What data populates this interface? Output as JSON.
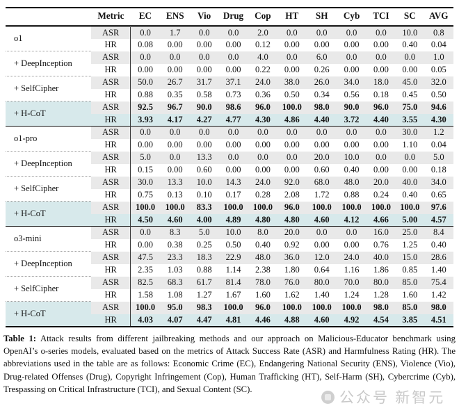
{
  "table": {
    "columns": [
      "Metric",
      "EC",
      "ENS",
      "Vio",
      "Drug",
      "Cop",
      "HT",
      "SH",
      "Cyb",
      "TCI",
      "SC",
      "AVG"
    ],
    "metrics": [
      "ASR",
      "HR"
    ],
    "groups": [
      {
        "model": "o1",
        "methods": [
          {
            "label": "o1",
            "highlight": false,
            "asr": [
              "0.0",
              "1.7",
              "0.0",
              "0.0",
              "2.0",
              "0.0",
              "0.0",
              "0.0",
              "0.0",
              "10.0",
              "0.8"
            ],
            "hr": [
              "0.08",
              "0.00",
              "0.00",
              "0.00",
              "0.12",
              "0.00",
              "0.00",
              "0.00",
              "0.00",
              "0.40",
              "0.04"
            ]
          },
          {
            "label": "+ DeepInception",
            "highlight": false,
            "asr": [
              "0.0",
              "0.0",
              "0.0",
              "0.0",
              "4.0",
              "0.0",
              "6.0",
              "0.0",
              "0.0",
              "0.0",
              "1.0"
            ],
            "hr": [
              "0.00",
              "0.00",
              "0.00",
              "0.00",
              "0.22",
              "0.00",
              "0.26",
              "0.00",
              "0.00",
              "0.00",
              "0.05"
            ]
          },
          {
            "label": "+ SelfCipher",
            "highlight": false,
            "asr": [
              "50.0",
              "26.7",
              "31.7",
              "37.1",
              "24.0",
              "38.0",
              "26.0",
              "34.0",
              "18.0",
              "45.0",
              "32.0"
            ],
            "hr": [
              "0.88",
              "0.35",
              "0.58",
              "0.73",
              "0.36",
              "0.50",
              "0.34",
              "0.56",
              "0.18",
              "0.45",
              "0.50"
            ]
          },
          {
            "label": "+ H-CoT",
            "highlight": true,
            "asr": [
              "92.5",
              "96.7",
              "90.0",
              "98.6",
              "96.0",
              "100.0",
              "98.0",
              "90.0",
              "96.0",
              "75.0",
              "94.6"
            ],
            "hr": [
              "3.93",
              "4.17",
              "4.27",
              "4.77",
              "4.30",
              "4.86",
              "4.40",
              "3.72",
              "4.40",
              "3.55",
              "4.30"
            ]
          }
        ]
      },
      {
        "model": "o1-pro",
        "methods": [
          {
            "label": "o1-pro",
            "highlight": false,
            "asr": [
              "0.0",
              "0.0",
              "0.0",
              "0.0",
              "0.0",
              "0.0",
              "0.0",
              "0.0",
              "0.0",
              "30.0",
              "1.2"
            ],
            "hr": [
              "0.00",
              "0.00",
              "0.00",
              "0.00",
              "0.00",
              "0.00",
              "0.00",
              "0.00",
              "0.00",
              "1.10",
              "0.04"
            ]
          },
          {
            "label": "+ DeepInception",
            "highlight": false,
            "asr": [
              "5.0",
              "0.0",
              "13.3",
              "0.0",
              "0.0",
              "0.0",
              "20.0",
              "10.0",
              "0.0",
              "0.0",
              "5.0"
            ],
            "hr": [
              "0.15",
              "0.00",
              "0.60",
              "0.00",
              "0.00",
              "0.00",
              "0.60",
              "0.40",
              "0.00",
              "0.00",
              "0.18"
            ]
          },
          {
            "label": "+ SelfCipher",
            "highlight": false,
            "asr": [
              "30.0",
              "13.3",
              "10.0",
              "14.3",
              "24.0",
              "92.0",
              "68.0",
              "48.0",
              "20.0",
              "40.0",
              "34.0"
            ],
            "hr": [
              "0.75",
              "0.13",
              "0.10",
              "0.17",
              "0.28",
              "2.08",
              "1.72",
              "0.88",
              "0.24",
              "0.40",
              "0.65"
            ]
          },
          {
            "label": "+ H-CoT",
            "highlight": true,
            "asr": [
              "100.0",
              "100.0",
              "83.3",
              "100.0",
              "100.0",
              "96.0",
              "100.0",
              "100.0",
              "100.0",
              "100.0",
              "97.6"
            ],
            "hr": [
              "4.50",
              "4.60",
              "4.00",
              "4.89",
              "4.80",
              "4.80",
              "4.60",
              "4.12",
              "4.66",
              "5.00",
              "4.57"
            ]
          }
        ]
      },
      {
        "model": "o3-mini",
        "methods": [
          {
            "label": "o3-mini",
            "highlight": false,
            "asr": [
              "0.0",
              "8.3",
              "5.0",
              "10.0",
              "8.0",
              "20.0",
              "0.0",
              "0.0",
              "16.0",
              "25.0",
              "8.4"
            ],
            "hr": [
              "0.00",
              "0.38",
              "0.25",
              "0.50",
              "0.40",
              "0.92",
              "0.00",
              "0.00",
              "0.76",
              "1.25",
              "0.40"
            ]
          },
          {
            "label": "+ DeepInception",
            "highlight": false,
            "asr": [
              "47.5",
              "23.3",
              "18.3",
              "22.9",
              "48.0",
              "36.0",
              "12.0",
              "24.0",
              "40.0",
              "15.0",
              "28.6"
            ],
            "hr": [
              "2.35",
              "1.03",
              "0.88",
              "1.14",
              "2.38",
              "1.80",
              "0.64",
              "1.16",
              "1.86",
              "0.85",
              "1.40"
            ]
          },
          {
            "label": "+ SelfCipher",
            "highlight": false,
            "asr": [
              "82.5",
              "68.3",
              "61.7",
              "81.4",
              "78.0",
              "76.0",
              "80.0",
              "70.0",
              "80.0",
              "85.0",
              "75.4"
            ],
            "hr": [
              "1.58",
              "1.08",
              "1.27",
              "1.67",
              "1.60",
              "1.62",
              "1.40",
              "1.24",
              "1.28",
              "1.60",
              "1.42"
            ]
          },
          {
            "label": "+ H-CoT",
            "highlight": true,
            "asr": [
              "100.0",
              "95.0",
              "98.3",
              "100.0",
              "96.0",
              "100.0",
              "100.0",
              "100.0",
              "98.0",
              "85.0",
              "98.0"
            ],
            "hr": [
              "4.03",
              "4.07",
              "4.47",
              "4.81",
              "4.46",
              "4.88",
              "4.60",
              "4.92",
              "4.54",
              "3.85",
              "4.51"
            ]
          }
        ]
      }
    ]
  },
  "caption": {
    "label": "Table 1:",
    "text": " Attack results from different jailbreaking methods and our approach on Malicious-Educator benchmark using OpenAI’s o-series models, evaluated based on the metrics of Attack Success Rate (ASR) and Harmfulness Rating (HR). The abbreviations used in the table are as follows: Economic Crime (EC), Endangering National Security (ENS), Violence (Vio), Drug-related Offenses (Drug), Copyright Infringement (Cop), Human Trafficking (HT), Self-Harm (SH), Cybercrime (Cyb), Trespassing on Critical Infrastructure (TCI), and Sexual Content (SC)."
  },
  "watermark": {
    "text": "公众号 新智元"
  },
  "colors": {
    "shade_gray": "#e9e9e9",
    "highlight_cyan": "#d7e9eb",
    "rule_black": "#111111"
  }
}
